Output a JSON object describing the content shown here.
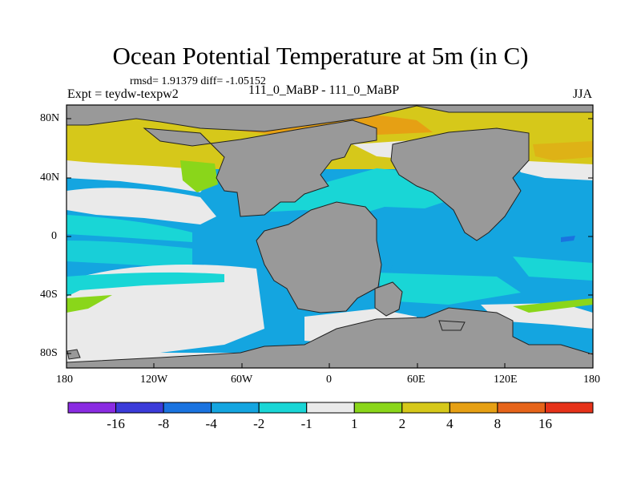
{
  "title": "Ocean Potential Temperature at 5m (in C)",
  "stats": "rmsd= 1.91379 diff= -1.05152",
  "expt": "Expt = teydw-texpw2",
  "subtitle": "111_0_MaBP - 111_0_MaBP",
  "season": "JJA",
  "map": {
    "lat_range": [
      -90,
      90
    ],
    "lon_range": [
      -180,
      180
    ],
    "lat_ticks": [
      "80N",
      "40N",
      "0",
      "40S",
      "80S"
    ],
    "lon_ticks": [
      "180",
      "120W",
      "60W",
      "0",
      "60E",
      "120E",
      "180"
    ],
    "land_color": "#999999"
  },
  "colorbar": {
    "colors": [
      "#8a2be2",
      "#3b3bd9",
      "#1a73e0",
      "#14a5e0",
      "#19d6d6",
      "#eaeaea",
      "#8ad61a",
      "#d6c81a",
      "#e6a014",
      "#e6641a",
      "#e63219"
    ],
    "labels": [
      "-16",
      "-8",
      "-4",
      "-2",
      "-1",
      "1",
      "2",
      "4",
      "8",
      "16"
    ]
  }
}
